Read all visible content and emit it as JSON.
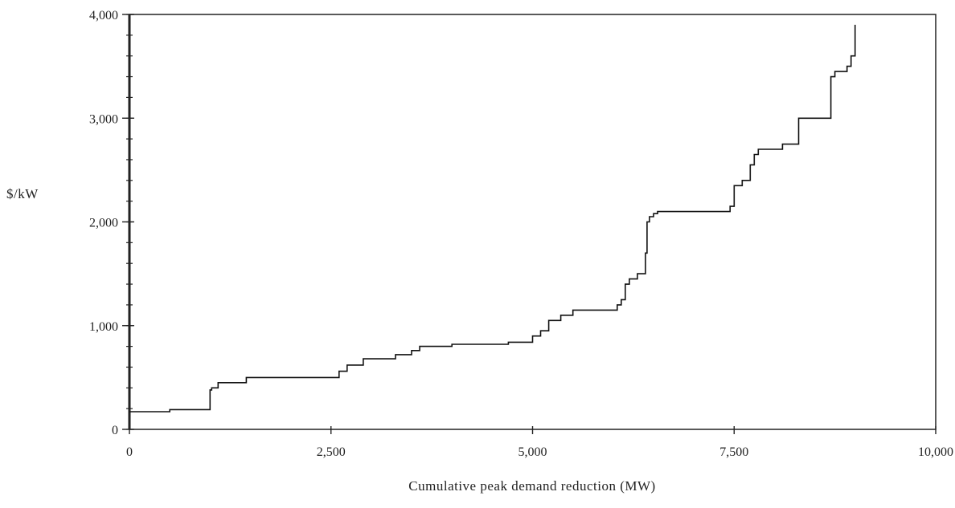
{
  "chart_data": {
    "type": "line",
    "step": true,
    "title": "",
    "xlabel": "Cumulative peak demand reduction (MW)",
    "ylabel": "$/kW",
    "xlim": [
      0,
      10000
    ],
    "ylim": [
      0,
      4000
    ],
    "x_ticks": [
      0,
      2500,
      5000,
      7500,
      10000
    ],
    "x_tick_labels": [
      "0",
      "2,500",
      "5,000",
      "7,500",
      "10,000"
    ],
    "y_ticks": [
      0,
      1000,
      2000,
      3000,
      4000
    ],
    "y_tick_labels": [
      "0",
      "1,000",
      "2,000",
      "3,000",
      "4,000"
    ],
    "y_minor_tick_step": 200,
    "grid": false,
    "series": [
      {
        "x": [
          0,
          500,
          1000,
          1020,
          1100,
          1450,
          2600,
          2700,
          2900,
          3300,
          3500,
          3600,
          4000,
          4700,
          5000,
          5100,
          5200,
          5350,
          5500,
          6050,
          6100,
          6150,
          6200,
          6300,
          6400,
          6420,
          6450,
          6500,
          6550,
          7450,
          7500,
          7600,
          7700,
          7750,
          7800,
          8100,
          8300,
          8700,
          8750,
          8900,
          8950,
          9000
        ],
        "y": [
          170,
          190,
          380,
          400,
          450,
          500,
          560,
          620,
          680,
          720,
          760,
          800,
          820,
          840,
          900,
          950,
          1050,
          1100,
          1150,
          1200,
          1250,
          1400,
          1450,
          1500,
          1700,
          2000,
          2050,
          2080,
          2100,
          2150,
          2350,
          2400,
          2550,
          2650,
          2700,
          2750,
          3000,
          3400,
          3450,
          3500,
          3600,
          3900
        ]
      }
    ]
  }
}
